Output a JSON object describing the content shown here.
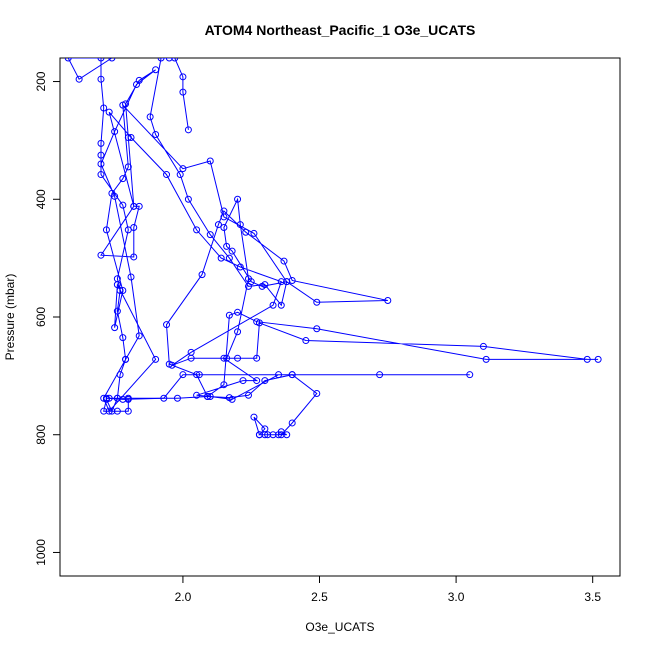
{
  "chart_data": {
    "type": "line",
    "title": "ATOM4 Northeast_Pacific_1 O3e_UCATS",
    "xlabel": "O3e_UCATS",
    "ylabel": "Pressure (mbar)",
    "xlim": [
      1.55,
      3.6
    ],
    "ylim": [
      1040,
      160
    ],
    "y_reversed": true,
    "x_ticks": [
      2.0,
      2.5,
      3.0,
      3.5
    ],
    "x_tick_labels": [
      "2.0",
      "2.5",
      "3.0",
      "3.5"
    ],
    "y_ticks": [
      200,
      400,
      600,
      800,
      1000
    ],
    "y_tick_labels": [
      "200",
      "400",
      "600",
      "800",
      "1000"
    ],
    "grid": false,
    "marker": "open-circle",
    "color": "#0000ff",
    "series": [
      {
        "points": [
          [
            1.74,
            160
          ],
          [
            1.62,
            196
          ],
          [
            1.58,
            160
          ],
          [
            1.7,
            160
          ],
          [
            1.7,
            196
          ],
          [
            1.71,
            245
          ],
          [
            1.7,
            305
          ],
          [
            1.7,
            325
          ],
          [
            1.7,
            358
          ],
          [
            1.78,
            410
          ],
          [
            1.8,
            452
          ],
          [
            1.76,
            535
          ],
          [
            1.77,
            555
          ],
          [
            1.76,
            590
          ],
          [
            1.78,
            635
          ],
          [
            1.79,
            672
          ],
          [
            1.77,
            698
          ],
          [
            1.76,
            738
          ],
          [
            1.74,
            760
          ],
          [
            1.72,
            740
          ],
          [
            1.71,
            760
          ],
          [
            1.76,
            760
          ],
          [
            1.8,
            760
          ],
          [
            1.8,
            740
          ],
          [
            1.72,
            738
          ],
          [
            1.78,
            740
          ],
          [
            1.93,
            738
          ],
          [
            2.0,
            698
          ],
          [
            2.06,
            698
          ],
          [
            2.4,
            698
          ],
          [
            2.72,
            698
          ],
          [
            3.05,
            698
          ],
          [
            2.35,
            698
          ],
          [
            2.18,
            740
          ],
          [
            2.1,
            735
          ],
          [
            2.05,
            733
          ],
          [
            2.22,
            708
          ],
          [
            2.27,
            708
          ],
          [
            2.15,
            670
          ],
          [
            2.2,
            670
          ],
          [
            2.27,
            670
          ],
          [
            2.28,
            610
          ],
          [
            2.45,
            640
          ],
          [
            3.1,
            650
          ],
          [
            3.48,
            672
          ],
          [
            3.52,
            672
          ],
          [
            3.11,
            672
          ],
          [
            2.49,
            620
          ],
          [
            2.27,
            608
          ],
          [
            2.2,
            592
          ],
          [
            2.17,
            597
          ],
          [
            2.15,
            715
          ],
          [
            2.09,
            735
          ],
          [
            2.05,
            698
          ],
          [
            1.95,
            680
          ],
          [
            1.94,
            613
          ],
          [
            2.07,
            528
          ],
          [
            2.13,
            443
          ],
          [
            2.15,
            420
          ],
          [
            2.23,
            456
          ],
          [
            2.37,
            505
          ],
          [
            2.4,
            538
          ],
          [
            2.75,
            572
          ],
          [
            2.49,
            575
          ],
          [
            2.38,
            540
          ],
          [
            2.29,
            548
          ],
          [
            2.25,
            540
          ],
          [
            2.18,
            488
          ],
          [
            2.16,
            480
          ],
          [
            2.15,
            448
          ],
          [
            2.2,
            400
          ],
          [
            2.21,
            443
          ],
          [
            2.24,
            535
          ],
          [
            2.2,
            625
          ],
          [
            2.16,
            670
          ],
          [
            2.03,
            670
          ],
          [
            1.96,
            682
          ],
          [
            2.03,
            660
          ],
          [
            2.33,
            580
          ],
          [
            2.36,
            540
          ],
          [
            2.21,
            515
          ],
          [
            2.14,
            500
          ],
          [
            2.05,
            452
          ],
          [
            1.94,
            358
          ],
          [
            1.81,
            295
          ],
          [
            1.73,
            252
          ],
          [
            1.82,
            412
          ],
          [
            1.84,
            412
          ],
          [
            1.82,
            448
          ],
          [
            1.82,
            498
          ],
          [
            1.7,
            495
          ],
          [
            1.82,
            412
          ],
          [
            1.8,
            295
          ],
          [
            1.79,
            238
          ],
          [
            1.84,
            198
          ],
          [
            1.9,
            180
          ],
          [
            1.83,
            205
          ],
          [
            1.75,
            285
          ],
          [
            1.7,
            340
          ],
          [
            1.75,
            395
          ],
          [
            1.81,
            532
          ],
          [
            1.84,
            632
          ],
          [
            1.79,
            672
          ],
          [
            1.71,
            738
          ],
          [
            1.73,
            760
          ],
          [
            1.9,
            672
          ],
          [
            1.76,
            545
          ],
          [
            1.75,
            618
          ],
          [
            1.78,
            555
          ],
          [
            1.72,
            452
          ],
          [
            1.74,
            390
          ],
          [
            1.78,
            365
          ],
          [
            1.8,
            345
          ],
          [
            1.78,
            240
          ],
          [
            2.0,
            348
          ],
          [
            2.1,
            335
          ],
          [
            2.15,
            430
          ],
          [
            2.26,
            458
          ],
          [
            2.38,
            540
          ],
          [
            2.36,
            580
          ],
          [
            2.3,
            545
          ],
          [
            2.24,
            548
          ],
          [
            2.17,
            500
          ],
          [
            2.1,
            460
          ],
          [
            2.02,
            400
          ],
          [
            1.99,
            358
          ],
          [
            1.9,
            290
          ],
          [
            1.88,
            260
          ],
          [
            1.92,
            160
          ],
          [
            1.95,
            160
          ],
          [
            1.97,
            160
          ],
          [
            2.0,
            192
          ],
          [
            2.0,
            218
          ],
          [
            2.02,
            282
          ]
        ]
      },
      {
        "points": [
          [
            1.73,
            738
          ],
          [
            1.76,
            738
          ],
          [
            1.8,
            738
          ],
          [
            1.98,
            738
          ],
          [
            2.09,
            735
          ],
          [
            2.17,
            737
          ],
          [
            2.24,
            733
          ],
          [
            2.3,
            708
          ],
          [
            2.4,
            698
          ],
          [
            2.49,
            730
          ],
          [
            2.4,
            780
          ],
          [
            2.36,
            800
          ],
          [
            2.33,
            800
          ],
          [
            2.3,
            800
          ],
          [
            2.28,
            800
          ],
          [
            2.3,
            790
          ],
          [
            2.26,
            770
          ],
          [
            2.28,
            800
          ],
          [
            2.31,
            800
          ],
          [
            2.35,
            800
          ],
          [
            2.38,
            800
          ],
          [
            2.36,
            795
          ]
        ]
      }
    ]
  }
}
